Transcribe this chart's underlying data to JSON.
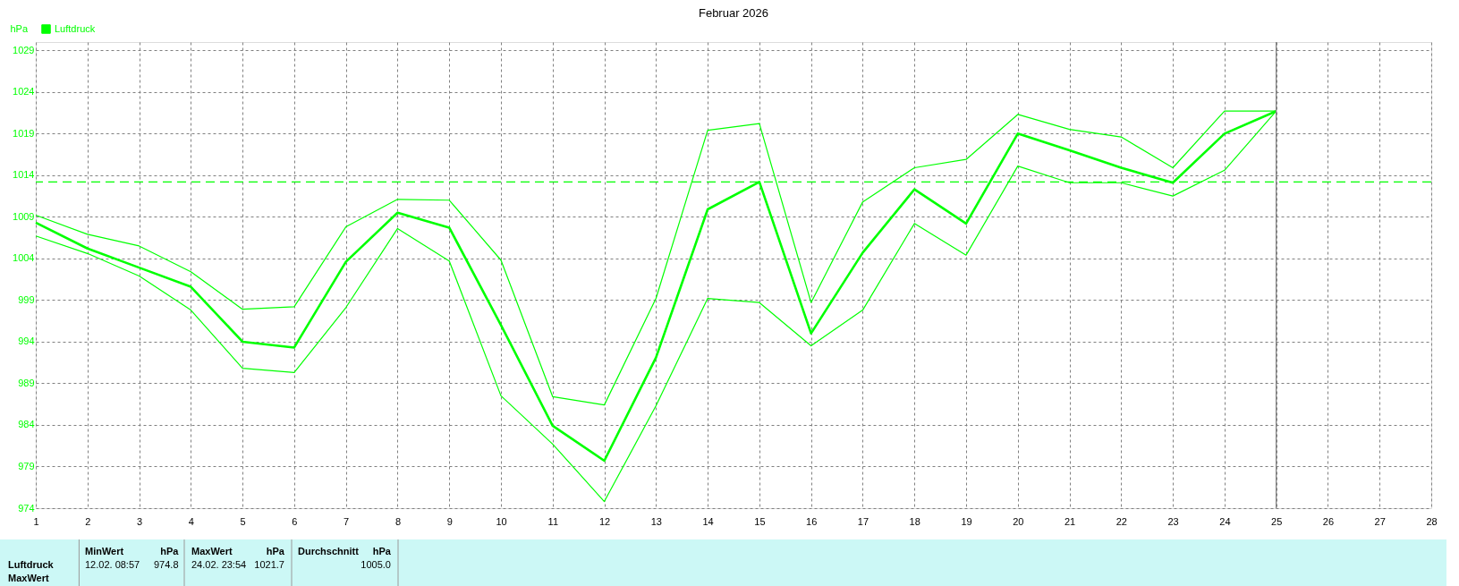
{
  "chart_data": {
    "type": "line",
    "title": "Februar 2026",
    "ylabel": "hPa",
    "x": [
      1,
      2,
      3,
      4,
      5,
      6,
      7,
      8,
      9,
      10,
      11,
      12,
      13,
      14,
      15,
      16,
      17,
      18,
      19,
      20,
      21,
      22,
      23,
      24,
      25
    ],
    "series": [
      {
        "name": "Luftdruck",
        "color": "#00ff00",
        "values": [
          1008.3,
          1005.2,
          1002.9,
          1000.6,
          994.0,
          993.3,
          1003.6,
          1009.5,
          1007.7,
          996.0,
          983.9,
          979.7,
          992.1,
          1009.9,
          1013.2,
          995.0,
          1004.7,
          1012.3,
          1008.2,
          1019.0,
          1017.0,
          1014.9,
          1013.1,
          1019.0,
          1021.7
        ]
      },
      {
        "color": "#00ff00",
        "values": [
          1009.2,
          1006.9,
          1005.5,
          1002.4,
          997.9,
          998.2,
          1007.8,
          1011.1,
          1011.0,
          1003.8,
          987.4,
          986.4,
          999.2,
          1019.4,
          1020.2,
          998.7,
          1010.8,
          1014.9,
          1015.9,
          1021.3,
          1019.5,
          1018.6,
          1014.9,
          1021.7,
          1021.7
        ]
      },
      {
        "color": "#00ff00",
        "values": [
          1006.7,
          1004.6,
          1001.9,
          997.8,
          990.8,
          990.3,
          998.1,
          1007.6,
          1003.7,
          987.5,
          981.7,
          974.8,
          986.3,
          999.2,
          998.7,
          993.5,
          997.8,
          1008.2,
          1004.4,
          1015.1,
          1013.1,
          1013.1,
          1011.5,
          1014.6,
          1021.7
        ]
      }
    ],
    "xlim": [
      1,
      28
    ],
    "xticks": [
      1,
      2,
      3,
      4,
      5,
      6,
      7,
      8,
      9,
      10,
      11,
      12,
      13,
      14,
      15,
      16,
      17,
      18,
      19,
      20,
      21,
      22,
      23,
      24,
      25,
      26,
      27,
      28
    ],
    "ylim": [
      974,
      1030
    ],
    "yticks": [
      974,
      979,
      984,
      989,
      994,
      999,
      1004,
      1009,
      1014,
      1019,
      1024,
      1029
    ],
    "grid": true,
    "legend": "top left",
    "marker": "none",
    "line_style": "solid",
    "ref_lines": [
      {
        "axis": "y",
        "value": 1013.2,
        "color": "#00ff00",
        "line_style": "dashed"
      },
      {
        "axis": "x",
        "value": 25,
        "color": "#808080",
        "line_style": "solid"
      }
    ],
    "annotations": [
      "Luftdruck",
      "MaxWert",
      "MinWert",
      "hPa",
      "12.02. 08:57",
      "974.8",
      "MaxWert",
      "hPa",
      "24.02. 23:54",
      "1021.7",
      "Durchschnitt",
      "hPa",
      "1005.0"
    ]
  }
}
